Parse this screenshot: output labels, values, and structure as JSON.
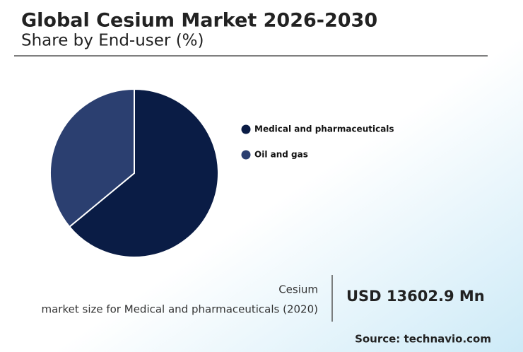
{
  "chart_data": {
    "type": "pie",
    "title": "Global Cesium Market 2026-2030",
    "subtitle": "Share by End-user (%)",
    "categories": [
      "Medical and pharmaceuticals",
      "Oil and gas"
    ],
    "values": [
      64,
      36
    ],
    "colors": [
      "#0a1c45",
      "#2b3f70"
    ],
    "annotations": {
      "stat_label": [
        "Cesium",
        "market size for Medical and pharmaceuticals (2020)"
      ],
      "stat_value": "USD 13602.9 Mn",
      "source": "Source: technavio.com"
    }
  }
}
